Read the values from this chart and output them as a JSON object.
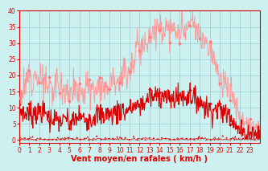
{
  "title": "",
  "xlabel": "Vent moyen/en rafales ( km/h )",
  "ylabel": "",
  "background_color": "#cdf0f0",
  "grid_color": "#99cccc",
  "xlim": [
    0,
    24
  ],
  "ylim": [
    0,
    40
  ],
  "yticks": [
    0,
    5,
    10,
    15,
    20,
    25,
    30,
    35,
    40
  ],
  "xticks": [
    0,
    1,
    2,
    3,
    4,
    5,
    6,
    7,
    8,
    9,
    10,
    11,
    12,
    13,
    14,
    15,
    16,
    17,
    18,
    19,
    20,
    21,
    22,
    23
  ],
  "avg_color": "#dd0000",
  "gust_color": "#ff9999",
  "avg_marker_color": "#dd0000",
  "gust_marker_color": "#ff7777",
  "avg_hourly": [
    8,
    8,
    9,
    7,
    6,
    6,
    7,
    7,
    8,
    8,
    9,
    10,
    11,
    13,
    14,
    12,
    13,
    14,
    12,
    10,
    9,
    8,
    3,
    2
  ],
  "gust_hourly": [
    11,
    20,
    19,
    17,
    16,
    15,
    15,
    16,
    17,
    18,
    19,
    22,
    29,
    32,
    36,
    35,
    33,
    35,
    32,
    30,
    18,
    17,
    5,
    3
  ],
  "label_color": "#dd0000",
  "spine_color": "#dd0000",
  "tick_fontsize": 5.5,
  "xlabel_fontsize": 7.0
}
